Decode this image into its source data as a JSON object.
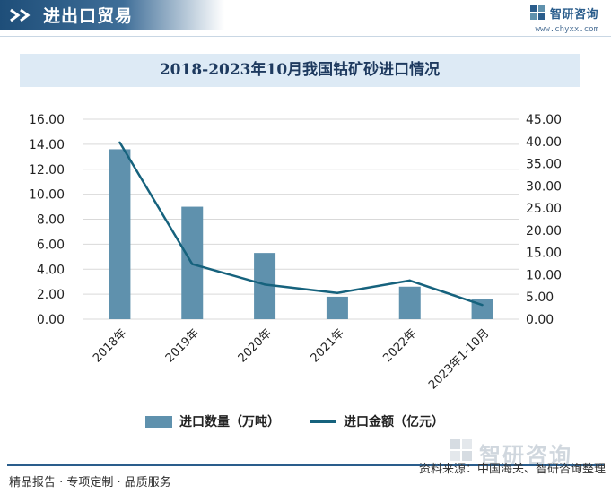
{
  "header": {
    "title": "进出口贸易",
    "brand_name": "智研咨询",
    "brand_url": "www.chyxx.com"
  },
  "chart_data": {
    "type": "bar",
    "title": "2018-2023年10月我国钴矿砂进口情况",
    "categories": [
      "2018年",
      "2019年",
      "2020年",
      "2021年",
      "2022年",
      "2023年1-10月"
    ],
    "series": [
      {
        "name": "进口数量（万吨）",
        "type": "bar",
        "axis": "left",
        "values": [
          13.6,
          9.0,
          5.3,
          1.8,
          2.6,
          1.6
        ]
      },
      {
        "name": "进口金额（亿元）",
        "type": "line",
        "axis": "right",
        "values": [
          39.8,
          12.4,
          7.8,
          5.9,
          8.7,
          3.2
        ]
      }
    ],
    "y_left": {
      "range": [
        0,
        16
      ],
      "ticks": [
        "0.00",
        "2.00",
        "4.00",
        "6.00",
        "8.00",
        "10.00",
        "12.00",
        "14.00",
        "16.00"
      ]
    },
    "y_right": {
      "range": [
        0,
        45
      ],
      "ticks": [
        "0.00",
        "5.00",
        "10.00",
        "15.00",
        "20.00",
        "25.00",
        "30.00",
        "35.00",
        "40.00",
        "45.00"
      ]
    },
    "grid": true,
    "legend_position": "bottom",
    "colors": {
      "bar": "#5f91ad",
      "line": "#16627d"
    }
  },
  "footer": {
    "left": "精品报告 · 专项定制 · 品质服务",
    "source": "资料来源：中国海关、智研咨询整理"
  },
  "watermark": {
    "text": "智研咨询"
  }
}
